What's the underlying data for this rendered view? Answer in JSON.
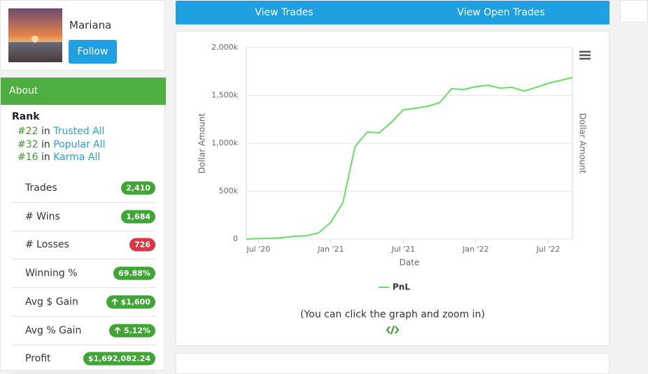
{
  "profile": {
    "name": "Mariana",
    "button": "Follow"
  },
  "about": {
    "title": "About",
    "rank_title": "Rank",
    "ranks": [
      {
        "rank": "#22",
        "in": "in",
        "list": "Trusted All"
      },
      {
        "rank": "#32",
        "in": "in",
        "list": "Popular All"
      },
      {
        "rank": "#16",
        "in": "in",
        "list": "Karma All"
      }
    ]
  },
  "stats": [
    {
      "label": "Trades",
      "value": "2,410"
    },
    {
      "label": "# Wins",
      "value": "1,684"
    },
    {
      "label": "# Losses",
      "value": "726"
    },
    {
      "label": "Winning %",
      "value": "69.88%"
    },
    {
      "label": "Avg $ Gain",
      "value": "$1,600"
    },
    {
      "label": "Avg % Gain",
      "value": "5.12%"
    },
    {
      "label": "Profit",
      "value": "$1,692,082.24"
    }
  ],
  "nav": [
    "View Trades",
    "View Open Trades"
  ],
  "chart_data": {
    "type": "line",
    "x_label": "Date",
    "y_label": "Dollar Amount",
    "y2_label": "Dollar Amount",
    "x": [
      "2020-06",
      "2020-07",
      "2020-08",
      "2020-09",
      "2020-10",
      "2020-11",
      "2020-12",
      "2021-01",
      "2021-02",
      "2021-03",
      "2021-04",
      "2021-05",
      "2021-06",
      "2021-07",
      "2021-08",
      "2021-09",
      "2021-10",
      "2021-11",
      "2021-12",
      "2022-01",
      "2022-02",
      "2022-03",
      "2022-04",
      "2022-05",
      "2022-06",
      "2022-07",
      "2022-08",
      "2022-09"
    ],
    "series": [
      {
        "name": "PnL",
        "color": "#66dd66",
        "values": [
          0,
          5000,
          7000,
          15000,
          29000,
          36000,
          66000,
          175000,
          380000,
          964000,
          1117000,
          1110000,
          1219000,
          1350000,
          1365000,
          1387000,
          1423000,
          1570000,
          1562000,
          1591000,
          1606000,
          1577000,
          1584000,
          1547000,
          1584000,
          1628000,
          1657000,
          1686000
        ]
      }
    ],
    "xlim": [
      "2020-06",
      "2022-09"
    ],
    "xticks": [
      {
        "value": "2020-07",
        "label": "Jul '20"
      },
      {
        "value": "2021-01",
        "label": "Jan '21"
      },
      {
        "value": "2021-07",
        "label": "Jul '21"
      },
      {
        "value": "2022-01",
        "label": "Jan '22"
      },
      {
        "value": "2022-07",
        "label": "Jul '22"
      }
    ],
    "ylim": [
      0,
      2000000
    ],
    "yticks": [
      0,
      {
        "value": 500000,
        "label": "500k"
      },
      {
        "value": 1000000,
        "label": "1,000k"
      },
      {
        "value": 1500000,
        "label": "1,500k"
      },
      {
        "value": 2000000,
        "label": "2,000k"
      }
    ],
    "grid": true,
    "legend": "bottom"
  },
  "caption": "(You can click the graph and zoom in)"
}
